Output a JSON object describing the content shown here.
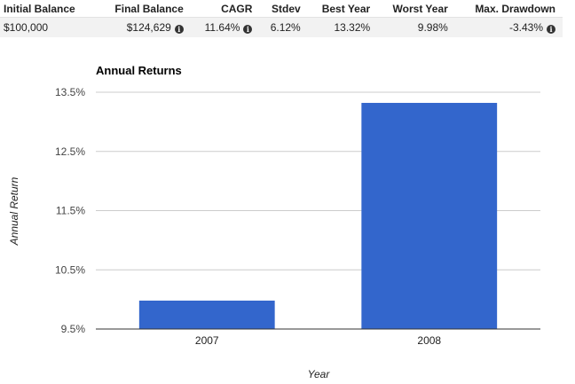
{
  "stats": {
    "headers": [
      "Initial Balance",
      "Final Balance",
      "CAGR",
      "Stdev",
      "Best Year",
      "Worst Year",
      "Max. Drawdown"
    ],
    "values": [
      "$100,000",
      "$124,629",
      "11.64%",
      "6.12%",
      "13.32%",
      "9.98%",
      "-3.43%"
    ],
    "info_icon_glyph": "i"
  },
  "chart_data": {
    "type": "bar",
    "title": "Annual Returns",
    "xlabel": "Year",
    "ylabel": "Annual Return",
    "categories": [
      "2007",
      "2008"
    ],
    "values": [
      9.98,
      13.32
    ],
    "ylim": [
      9.5,
      13.5
    ],
    "yticks": [
      9.5,
      10.5,
      11.5,
      12.5,
      13.5
    ],
    "ytick_labels": [
      "9.5%",
      "10.5%",
      "11.5%",
      "12.5%",
      "13.5%"
    ],
    "bar_color": "#3366cc",
    "grid": true
  }
}
